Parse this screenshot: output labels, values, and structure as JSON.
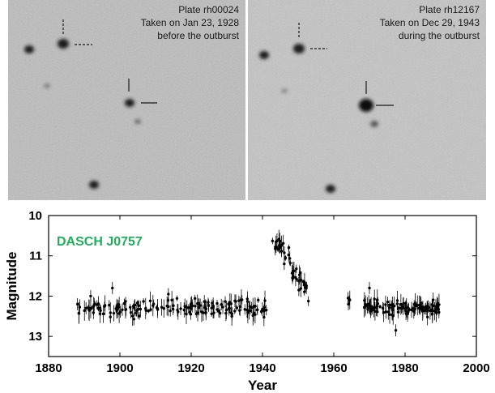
{
  "plates": [
    {
      "caption_lines": [
        "Plate rh00024",
        "Taken on Jan 23, 1928",
        "before the outburst"
      ],
      "bright": false
    },
    {
      "caption_lines": [
        "Plate rh12167",
        "Taken on Dec 29, 1943",
        "during the outburst"
      ],
      "bright": true
    }
  ],
  "colors": {
    "title": "#1fae5a",
    "plate_bg": "#bdbdbd",
    "points": "#000000"
  },
  "chart_data": {
    "type": "scatter",
    "title": "DASCH J0757",
    "xlabel": "Year",
    "ylabel": "Magnitude",
    "xlim": [
      1880,
      2000
    ],
    "ylim": [
      10,
      13.5
    ],
    "y_inverted": true,
    "x_ticks": [
      1880,
      1900,
      1920,
      1940,
      1960,
      1980,
      2000
    ],
    "y_ticks": [
      10,
      11,
      12,
      13
    ],
    "error_bars": true,
    "segments": [
      {
        "x_start": 1888,
        "x_end": 1942,
        "mag_mean": 12.3,
        "mag_spread": 0.18,
        "count": 170
      },
      {
        "x_start": 1942.8,
        "x_end": 1945.5,
        "mag_mean": 10.75,
        "mag_spread": 0.12,
        "count": 14
      },
      {
        "x_start": 1945.5,
        "x_end": 1953,
        "mag_mean": 11.6,
        "mag_spread": 0.25,
        "count": 30
      },
      {
        "x_start": 1963.5,
        "x_end": 1964.5,
        "mag_mean": 12.1,
        "mag_spread": 0.1,
        "count": 2
      },
      {
        "x_start": 1968.5,
        "x_end": 1990,
        "mag_mean": 12.3,
        "mag_spread": 0.15,
        "count": 110
      }
    ],
    "points": [
      {
        "x": 1888.1,
        "y": 12.2
      },
      {
        "x": 1890.5,
        "y": 12.3
      },
      {
        "x": 1891.8,
        "y": 12.0
      },
      {
        "x": 1897.9,
        "y": 11.8
      },
      {
        "x": 1913.6,
        "y": 11.95
      },
      {
        "x": 1943.8,
        "y": 10.65
      },
      {
        "x": 1944.9,
        "y": 10.8
      },
      {
        "x": 1946.1,
        "y": 11.2
      },
      {
        "x": 1948.4,
        "y": 11.55
      },
      {
        "x": 1950.2,
        "y": 11.85
      },
      {
        "x": 1952.3,
        "y": 11.8
      },
      {
        "x": 1964.0,
        "y": 12.05
      },
      {
        "x": 1964.1,
        "y": 12.2
      },
      {
        "x": 1970.0,
        "y": 11.8
      },
      {
        "x": 1977.4,
        "y": 12.85
      },
      {
        "x": 1989.5,
        "y": 12.4
      }
    ]
  }
}
